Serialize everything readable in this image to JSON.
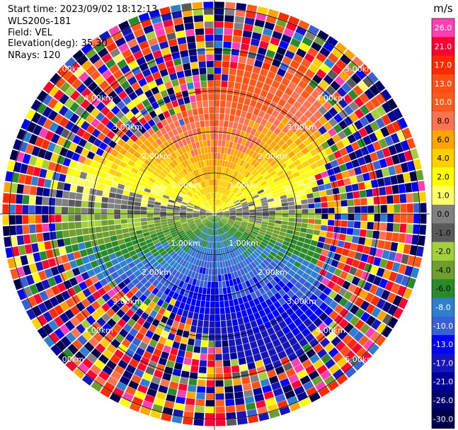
{
  "header": {
    "start_time": "Start time: 2023/09/02 18:12:13",
    "instrument": "WLS200s-181",
    "field": "Field: VEL",
    "elevation": "Elevation(deg): 35.30",
    "nrays": "NRays: 120"
  },
  "chart_data": {
    "type": "heatmap",
    "projection": "polar-ppi",
    "field": "VEL",
    "n_rays": 120,
    "range_rings_km": [
      1.0,
      2.0,
      3.0,
      4.0,
      5.0
    ],
    "ring_labels": [
      "1.00km",
      "2.00km",
      "3.00km",
      "4.00km",
      "5.00km"
    ],
    "colorbar": {
      "unit": "m/s",
      "ticks": [
        "26.0",
        "21.0",
        "17.0",
        "13.0",
        "10.0",
        "8.0",
        "6.0",
        "4.0",
        "2.0",
        "1.0",
        "0.0",
        "-1.0",
        "-2.0",
        "-4.0",
        "-6.0",
        "-8.0",
        "-10.0",
        "-13.0",
        "-17.0",
        "-21.0",
        "-26.0",
        "-30.0"
      ],
      "colors": [
        "#ff3fb4",
        "#ff0033",
        "#ff2a00",
        "#ff4f14",
        "#ff5a1e",
        "#ff7350",
        "#ffa400",
        "#ffcf00",
        "#ffff00",
        "#ffff66",
        "#808080",
        "#5a5a5a",
        "#a2d03a",
        "#6e9e2d",
        "#2a8a2a",
        "#2e7fd0",
        "#3a60d6",
        "#0000ff",
        "#1515bb",
        "#000099",
        "#000070",
        "#00004a"
      ]
    }
  }
}
